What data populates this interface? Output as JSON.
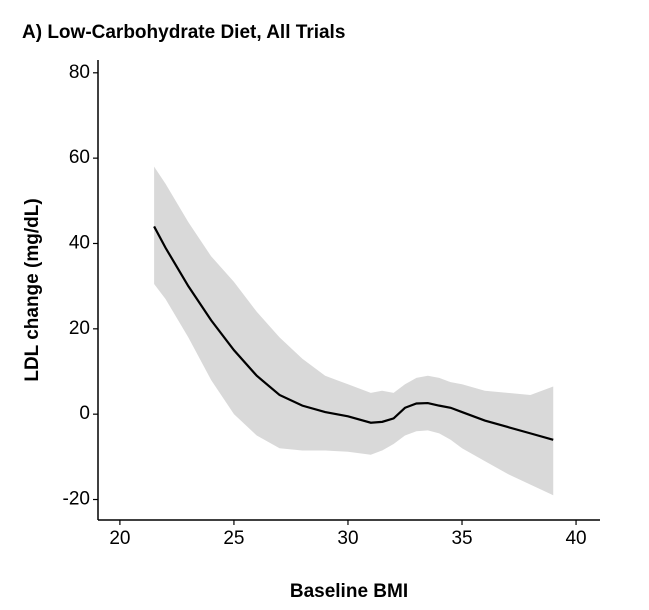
{
  "chart_data": {
    "type": "line",
    "title": "A) Low-Carbohydrate Diet, All Trials",
    "x_label": "Baseline BMI",
    "y_label": "LDL change (mg/dL)",
    "x": [
      21.5,
      22,
      23,
      24,
      25,
      26,
      27,
      28,
      29,
      30,
      31,
      31.5,
      32,
      32.5,
      33,
      33.5,
      34,
      34.5,
      35,
      36,
      37,
      38,
      39
    ],
    "series": [
      {
        "color": "#000000",
        "values": [
          44,
          39,
          30,
          22,
          15,
          9,
          4.5,
          2,
          0.5,
          -0.5,
          -2,
          -1.8,
          -1,
          1.5,
          2.5,
          2.6,
          2,
          1.5,
          0.5,
          -1.5,
          -3,
          -4.5,
          -6
        ],
        "upper": [
          58,
          54,
          45,
          37,
          31,
          24,
          18,
          13,
          9,
          7,
          5,
          5.5,
          5,
          7,
          8.5,
          9,
          8.5,
          7.5,
          7,
          5.5,
          5,
          4.5,
          6.5
        ],
        "lower": [
          30.5,
          27,
          18,
          8,
          0,
          -5,
          -8,
          -8.5,
          -8.5,
          -8.8,
          -9.5,
          -8.5,
          -7,
          -5,
          -4,
          -3.8,
          -4.5,
          -6,
          -8,
          -11,
          -14,
          -16.5,
          -19
        ],
        "band_color": "#d9d9d9"
      }
    ],
    "xlim": [
      19.04,
      41.05
    ],
    "ylim": [
      -24.8,
      83
    ],
    "xticks": [
      20,
      25,
      30,
      35,
      40
    ],
    "yticks": [
      -20,
      0,
      20,
      40,
      60,
      80
    ]
  }
}
